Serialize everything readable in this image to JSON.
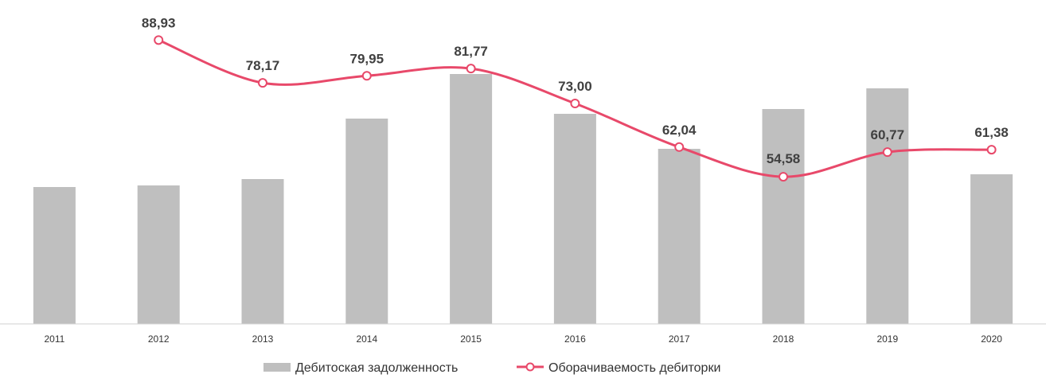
{
  "chart_data": {
    "type": "bar",
    "categories": [
      "2011",
      "2012",
      "2013",
      "2014",
      "2015",
      "2016",
      "2017",
      "2018",
      "2019",
      "2020"
    ],
    "series": [
      {
        "name": "Дебитоская задолженность",
        "type": "bar",
        "color": "#bfbfbf",
        "values": [
          172,
          174,
          182,
          258,
          314,
          264,
          220,
          270,
          296,
          188
        ]
      },
      {
        "name": "Оборачиваемость дебиторки",
        "type": "line",
        "color": "#e8496a",
        "values": [
          null,
          88.93,
          78.17,
          79.95,
          81.77,
          73.0,
          62.04,
          54.58,
          60.77,
          61.38
        ],
        "labels": [
          "",
          "88,93",
          "78,17",
          "79,95",
          "81,77",
          "73,00",
          "62,04",
          "54,58",
          "60,77",
          "61,38"
        ]
      }
    ],
    "bar_axis": {
      "min": 0,
      "max": 360
    },
    "line_axis": {
      "min": 25,
      "max": 95
    },
    "grid": false,
    "legend": "bottom-center"
  }
}
